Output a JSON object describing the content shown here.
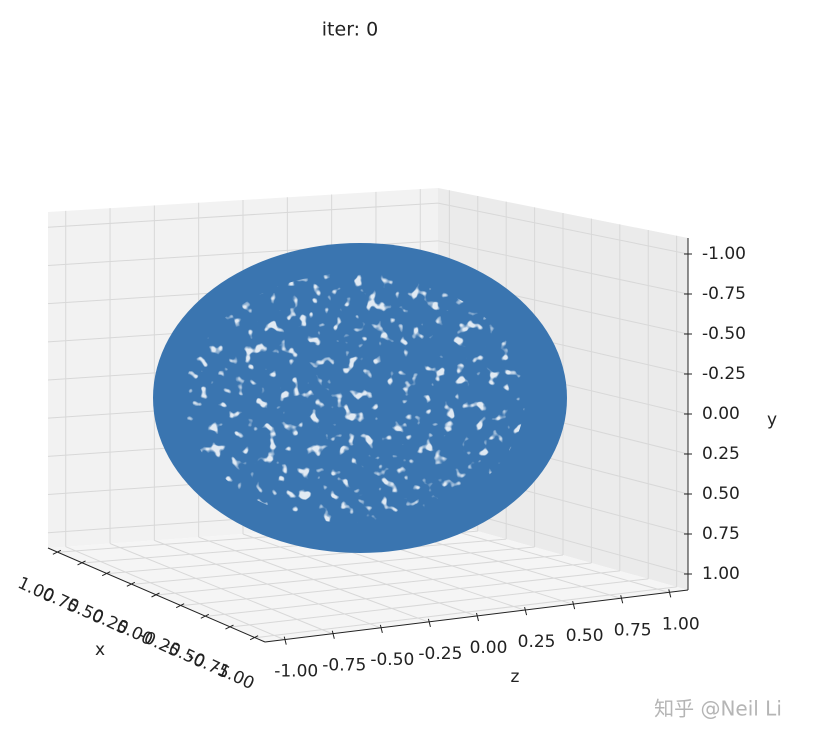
{
  "chart_data": {
    "type": "scatter3d",
    "title": "iter: 0",
    "xlabel": "x",
    "ylabel": "y",
    "zlabel": "z",
    "color": "#3a75b0",
    "grid": true,
    "xlim": [
      -1.1,
      1.1
    ],
    "ylim": [
      -1.1,
      1.1
    ],
    "zlim": [
      -1.1,
      1.1
    ],
    "xticks": [
      {
        "value": 1,
        "label": "1.00"
      },
      {
        "value": 0.75,
        "label": "0.75"
      },
      {
        "value": 0.5,
        "label": "0.50"
      },
      {
        "value": 0.25,
        "label": "0.25"
      },
      {
        "value": 0,
        "label": "0.00"
      },
      {
        "value": -0.25,
        "label": "-0.25"
      },
      {
        "value": -0.5,
        "label": "-0.50"
      },
      {
        "value": -0.75,
        "label": "-0.75"
      },
      {
        "value": -1,
        "label": "-1.00"
      }
    ],
    "yticks": [
      {
        "value": -1,
        "label": "-1.00"
      },
      {
        "value": -0.75,
        "label": "-0.75"
      },
      {
        "value": -0.5,
        "label": "-0.50"
      },
      {
        "value": -0.25,
        "label": "-0.25"
      },
      {
        "value": 0,
        "label": "0.00"
      },
      {
        "value": 0.25,
        "label": "0.25"
      },
      {
        "value": 0.5,
        "label": "0.50"
      },
      {
        "value": 0.75,
        "label": "0.75"
      },
      {
        "value": 1,
        "label": "1.00"
      }
    ],
    "zticks": [
      {
        "value": -1,
        "label": "-1.00"
      },
      {
        "value": -0.75,
        "label": "-0.75"
      },
      {
        "value": -0.5,
        "label": "-0.50"
      },
      {
        "value": -0.25,
        "label": "-0.25"
      },
      {
        "value": 0,
        "label": "0.00"
      },
      {
        "value": 0.25,
        "label": "0.25"
      },
      {
        "value": 0.5,
        "label": "0.50"
      },
      {
        "value": 0.75,
        "label": "0.75"
      },
      {
        "value": 1,
        "label": "1.00"
      }
    ]
  },
  "watermark": "知乎 @Neil Li"
}
